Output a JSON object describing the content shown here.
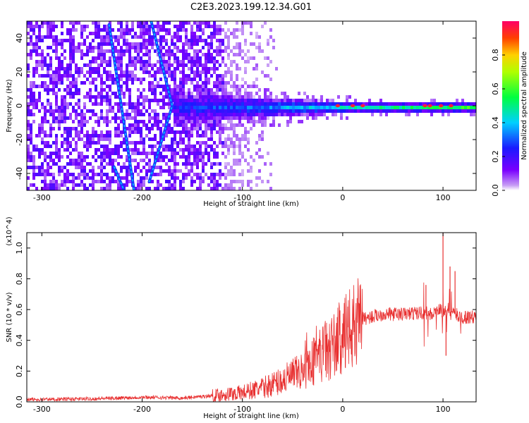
{
  "title": "C2E3.2023.199.12.34.G01",
  "chart_data": [
    {
      "type": "heatmap",
      "xlabel": "Height of straight line (km)",
      "ylabel": "Frequency (Hz)",
      "xlim": [
        -315,
        133
      ],
      "ylim": [
        -50,
        50
      ],
      "x_ticks": [
        -300,
        -200,
        -100,
        0,
        100
      ],
      "y_ticks": [
        -40,
        -20,
        0,
        20,
        40
      ],
      "colorbar": {
        "label": "Normalized spectral amplitude",
        "range": [
          0.0,
          1.0
        ],
        "ticks": [
          "0.0",
          "0.2",
          "0.4",
          "0.6",
          "0.8"
        ],
        "colormap": "rainbow (violet to red)"
      },
      "features": [
        {
          "kind": "noise",
          "x_range": [
            -315,
            -120
          ],
          "freq_range": [
            -50,
            50
          ],
          "amplitude": 0.1
        },
        {
          "kind": "band",
          "x_range": [
            -170,
            133
          ],
          "center_hz": 0,
          "halfwidth_hz": [
            10,
            3
          ],
          "amplitude": [
            0.2,
            0.55
          ]
        },
        {
          "kind": "streak",
          "points": [
            [
              -233,
              48
            ],
            [
              -208,
              -50
            ]
          ]
        },
        {
          "kind": "streak",
          "points": [
            [
              -191,
              50
            ],
            [
              -170,
              0
            ],
            [
              -193,
              -45
            ]
          ]
        },
        {
          "kind": "streak",
          "points": [
            [
              -228,
              -36
            ],
            [
              -218,
              -50
            ]
          ]
        },
        {
          "kind": "hotspot",
          "x": [
            -5,
            10,
            20,
            82,
            87,
            98,
            108
          ],
          "freq_hz": 0,
          "amplitude": 0.95
        }
      ]
    },
    {
      "type": "line",
      "xlabel": "Height of straight line (km)",
      "ylabel": "SNR (10 * v/v)",
      "y_exponent": "(x10^4)",
      "xlim": [
        -315,
        133
      ],
      "ylim": [
        0.0,
        1.1
      ],
      "x_ticks": [
        -300,
        -200,
        -100,
        0,
        100
      ],
      "y_ticks": [
        "0.0",
        "0.2",
        "0.4",
        "0.6",
        "0.8",
        "1.0"
      ],
      "color": "#e83030",
      "series": [
        {
          "x": [
            -315,
            -250,
            -200,
            -160,
            -130,
            -100,
            -80,
            -60,
            -40,
            -30,
            -20,
            -10,
            0,
            10,
            20,
            40,
            60,
            80,
            90,
            95,
            100,
            105,
            110,
            115,
            120,
            133
          ],
          "y": [
            0.015,
            0.02,
            0.03,
            0.025,
            0.04,
            0.06,
            0.09,
            0.14,
            0.2,
            0.26,
            0.32,
            0.36,
            0.42,
            0.48,
            0.54,
            0.57,
            0.57,
            0.58,
            0.57,
            0.6,
            0.58,
            0.6,
            0.58,
            0.56,
            0.55,
            0.55
          ]
        }
      ],
      "spikes": [
        {
          "x": 83,
          "y": 0.76
        },
        {
          "x": 100,
          "y": 1.1
        },
        {
          "x": 103,
          "y": 0.3
        },
        {
          "x": 107,
          "y": 0.88
        },
        {
          "x": 112,
          "y": 0.85
        }
      ]
    }
  ]
}
